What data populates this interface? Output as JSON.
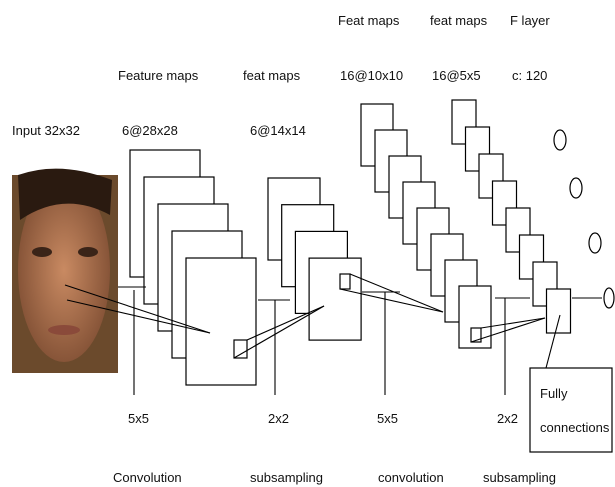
{
  "input": {
    "label": "Input 32x32"
  },
  "layers": [
    {
      "heading": "Feature maps",
      "size": "6@28x28",
      "kernel": "5x5",
      "operation": "Convolution"
    },
    {
      "heading": "feat maps",
      "size": "6@14x14",
      "kernel": "2x2",
      "operation": "subsampling"
    },
    {
      "heading": "Feat maps",
      "size": "16@10x10",
      "kernel": "5x5",
      "operation": "convolution"
    },
    {
      "heading": "feat maps",
      "size": "16@5x5",
      "kernel": "2x2",
      "operation": "subsampling"
    },
    {
      "heading": "F layer",
      "size": "c: 120"
    }
  ],
  "output": {
    "label_lines": [
      "Fully",
      "connections"
    ]
  }
}
